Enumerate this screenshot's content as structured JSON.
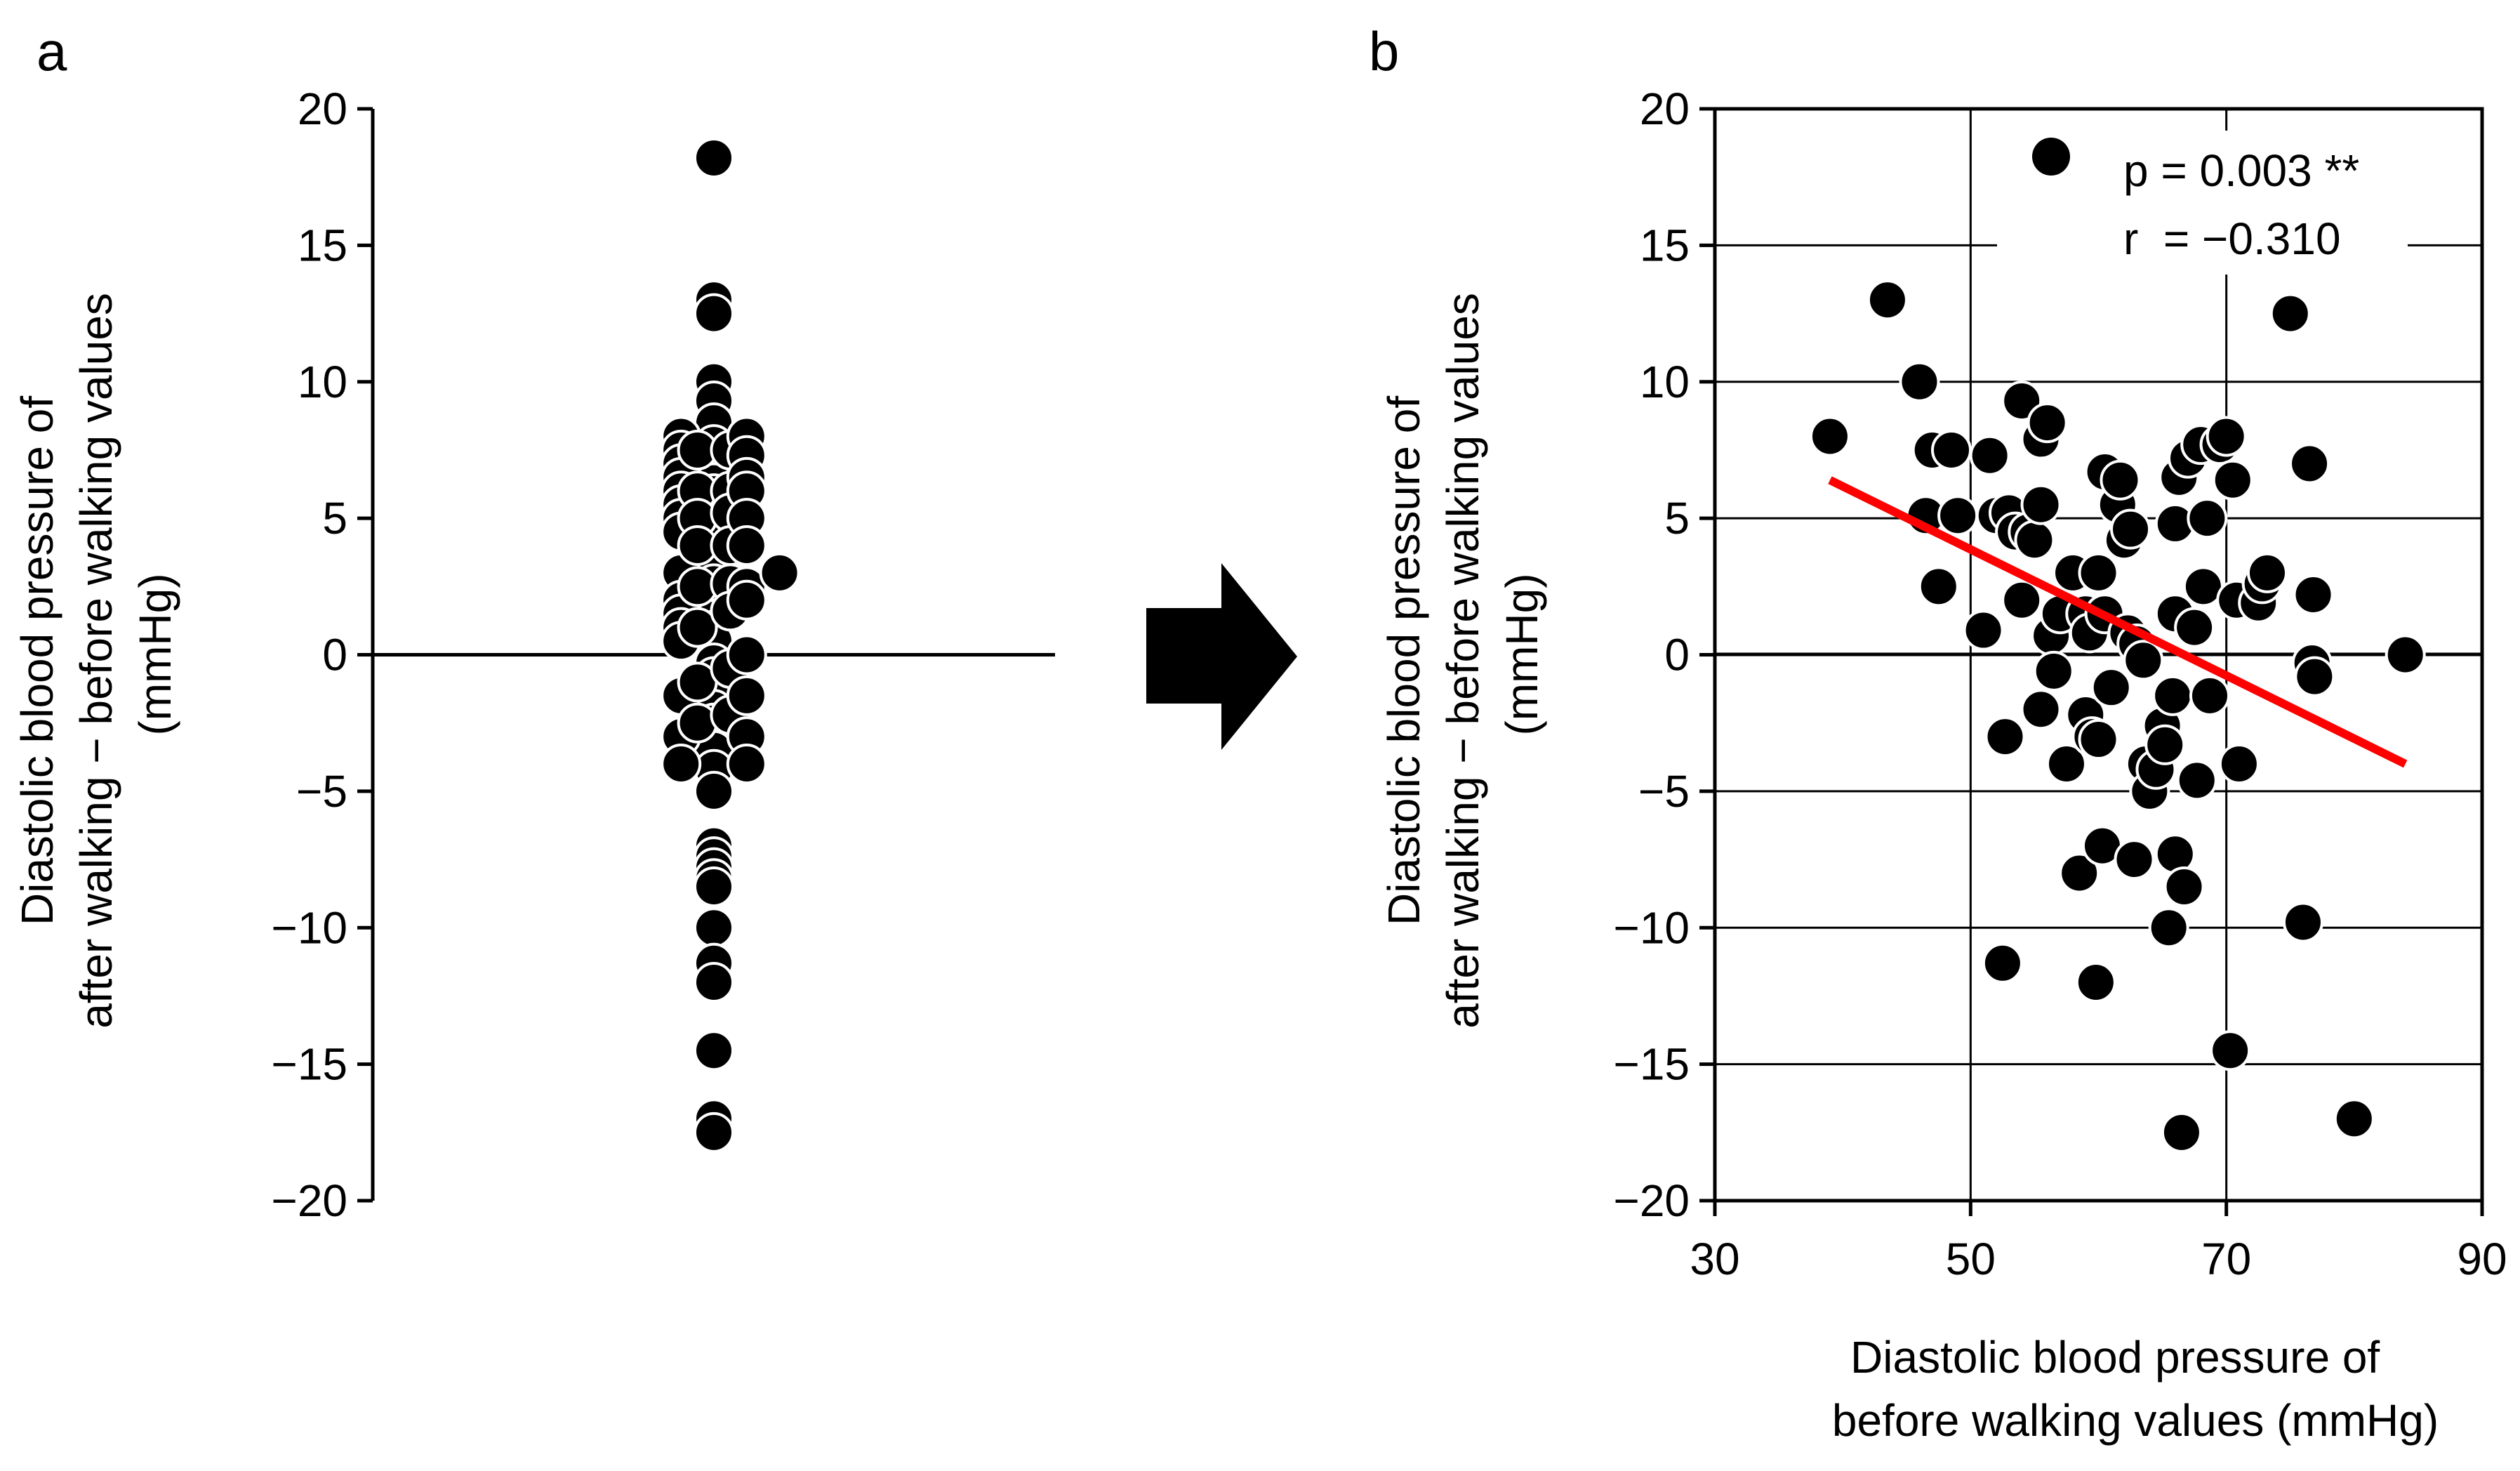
{
  "arrow_color": "#000000",
  "chart_data": [
    {
      "panel_label": "a",
      "type": "scatter",
      "title": "",
      "xlabel": "",
      "ylabel_lines": [
        "Diastolic blood pressure of",
        "after walking − before walking values",
        "(mmHg)"
      ],
      "ylim": [
        -20,
        20
      ],
      "yticks": [
        20,
        15,
        10,
        5,
        0,
        -5,
        -10,
        -15,
        -20
      ],
      "ytick_labels": [
        "20",
        "15",
        "10",
        "5",
        "0",
        "−5",
        "−10",
        "−15",
        "−20"
      ],
      "marker_color": "#000000",
      "marker_edge": "#ffffff",
      "zero_line": true,
      "points": [
        {
          "x": 0,
          "y": 18.2
        },
        {
          "x": 0,
          "y": 13
        },
        {
          "x": 0,
          "y": 12.5
        },
        {
          "x": 0,
          "y": 10
        },
        {
          "x": 0,
          "y": 9.3
        },
        {
          "x": 0,
          "y": 8.5
        },
        {
          "x": 0,
          "y": 7.7
        },
        {
          "x": 0,
          "y": 7
        },
        {
          "x": 0,
          "y": 6.6
        },
        {
          "x": 0,
          "y": 6.3
        },
        {
          "x": 0,
          "y": 5.9
        },
        {
          "x": 0,
          "y": 5.5
        },
        {
          "x": 0,
          "y": 5
        },
        {
          "x": 0,
          "y": 4.5
        },
        {
          "x": 0,
          "y": 4.1
        },
        {
          "x": 0,
          "y": 3.5
        },
        {
          "x": 0,
          "y": 3
        },
        {
          "x": 0,
          "y": 2.6
        },
        {
          "x": 0,
          "y": 2.1
        },
        {
          "x": 0,
          "y": 1.7
        },
        {
          "x": 0,
          "y": 1.3
        },
        {
          "x": 0,
          "y": 0.9
        },
        {
          "x": 0,
          "y": 0.5
        },
        {
          "x": 0,
          "y": -0.3
        },
        {
          "x": 0,
          "y": -0.8
        },
        {
          "x": 0,
          "y": -1.5
        },
        {
          "x": 0,
          "y": -2
        },
        {
          "x": 0,
          "y": -2.5
        },
        {
          "x": 0,
          "y": -3
        },
        {
          "x": 0,
          "y": -3.5
        },
        {
          "x": 0,
          "y": -4.2
        },
        {
          "x": 0,
          "y": -5
        },
        {
          "x": 0,
          "y": -7
        },
        {
          "x": 0,
          "y": -7.4
        },
        {
          "x": 0,
          "y": -7.8
        },
        {
          "x": 0,
          "y": -8.2
        },
        {
          "x": 0,
          "y": -8.5
        },
        {
          "x": 0,
          "y": -10
        },
        {
          "x": 0,
          "y": -11.3
        },
        {
          "x": 0,
          "y": -12
        },
        {
          "x": 0,
          "y": -14.5
        },
        {
          "x": 0,
          "y": -17
        },
        {
          "x": 0,
          "y": -17.5
        },
        {
          "x": -0.9,
          "y": 8
        },
        {
          "x": -0.9,
          "y": 7.5
        },
        {
          "x": -0.9,
          "y": 7
        },
        {
          "x": -0.9,
          "y": 6.5
        },
        {
          "x": -0.9,
          "y": 6
        },
        {
          "x": -0.9,
          "y": 5.5
        },
        {
          "x": -0.9,
          "y": 5
        },
        {
          "x": -0.9,
          "y": 4.5
        },
        {
          "x": -0.9,
          "y": 3
        },
        {
          "x": -0.9,
          "y": 2
        },
        {
          "x": -0.9,
          "y": 1.5
        },
        {
          "x": -0.9,
          "y": 1
        },
        {
          "x": -0.9,
          "y": 0.5
        },
        {
          "x": -0.9,
          "y": -1.5
        },
        {
          "x": -0.9,
          "y": -3
        },
        {
          "x": -0.9,
          "y": -4
        },
        {
          "x": -0.45,
          "y": 7.5
        },
        {
          "x": -0.45,
          "y": 6
        },
        {
          "x": -0.45,
          "y": 5
        },
        {
          "x": -0.45,
          "y": 4
        },
        {
          "x": -0.45,
          "y": 2.5
        },
        {
          "x": -0.45,
          "y": 1
        },
        {
          "x": -0.45,
          "y": -1
        },
        {
          "x": -0.45,
          "y": -2.5
        },
        {
          "x": 0.45,
          "y": 7.5
        },
        {
          "x": 0.45,
          "y": 6
        },
        {
          "x": 0.45,
          "y": 5.2
        },
        {
          "x": 0.45,
          "y": 4
        },
        {
          "x": 0.45,
          "y": 2.6
        },
        {
          "x": 0.45,
          "y": 1.6
        },
        {
          "x": 0.45,
          "y": -0.5
        },
        {
          "x": 0.45,
          "y": -2.2
        },
        {
          "x": 0.9,
          "y": 8
        },
        {
          "x": 0.9,
          "y": 7.3
        },
        {
          "x": 0.9,
          "y": 6.5
        },
        {
          "x": 0.9,
          "y": 6
        },
        {
          "x": 0.9,
          "y": 5
        },
        {
          "x": 0.9,
          "y": 4
        },
        {
          "x": 0.9,
          "y": 2.5
        },
        {
          "x": 0.9,
          "y": 2
        },
        {
          "x": 0.9,
          "y": 0
        },
        {
          "x": 0.9,
          "y": -1.5
        },
        {
          "x": 0.9,
          "y": -3
        },
        {
          "x": 0.9,
          "y": -4
        },
        {
          "x": 1.8,
          "y": 3
        }
      ]
    },
    {
      "panel_label": "b",
      "type": "scatter",
      "title": "",
      "xlabel_lines": [
        "Diastolic blood pressure of",
        "before walking values (mmHg)"
      ],
      "ylabel_lines": [
        "Diastolic blood pressure of",
        "after walking − before walking values",
        "(mmHg)"
      ],
      "xlim": [
        30,
        90
      ],
      "ylim": [
        -20,
        20
      ],
      "xticks": [
        30,
        50,
        70,
        90
      ],
      "xtick_labels": [
        "30",
        "50",
        "70",
        "90"
      ],
      "yticks": [
        20,
        15,
        10,
        5,
        0,
        -5,
        -10,
        -15,
        -20
      ],
      "ytick_labels": [
        "20",
        "15",
        "10",
        "5",
        "0",
        "−5",
        "−10",
        "−15",
        "−20"
      ],
      "grid": true,
      "legend": {
        "location": "top-right",
        "label": "p = 0.003 **",
        "stat": "r  = −0.310"
      },
      "marker_color": "#000000",
      "trend_line": {
        "color": "#ff0000",
        "x": [
          39,
          84
        ],
        "y": [
          6.4,
          -4.0
        ]
      },
      "points": [
        {
          "x": 39,
          "y": 8
        },
        {
          "x": 43.5,
          "y": 13
        },
        {
          "x": 46,
          "y": 10
        },
        {
          "x": 46.5,
          "y": 5.1
        },
        {
          "x": 47,
          "y": 7.5
        },
        {
          "x": 47.5,
          "y": 2.5
        },
        {
          "x": 48.5,
          "y": 7.5
        },
        {
          "x": 49,
          "y": 5.1
        },
        {
          "x": 51,
          "y": 0.9
        },
        {
          "x": 51.5,
          "y": 7.3
        },
        {
          "x": 52,
          "y": 5.1
        },
        {
          "x": 52.5,
          "y": -11.3
        },
        {
          "x": 52.7,
          "y": -3
        },
        {
          "x": 53,
          "y": 5.2
        },
        {
          "x": 53.5,
          "y": 4.5
        },
        {
          "x": 54,
          "y": 9.3
        },
        {
          "x": 54,
          "y": 2
        },
        {
          "x": 54.5,
          "y": 4.5
        },
        {
          "x": 55,
          "y": 4.2
        },
        {
          "x": 55.5,
          "y": 7.9
        },
        {
          "x": 55.5,
          "y": 5.5
        },
        {
          "x": 55.5,
          "y": -2
        },
        {
          "x": 56,
          "y": 8.5
        },
        {
          "x": 56.3,
          "y": 0.7
        },
        {
          "x": 56.5,
          "y": -0.6
        },
        {
          "x": 57,
          "y": 1.5
        },
        {
          "x": 57.5,
          "y": -4
        },
        {
          "x": 58,
          "y": 3
        },
        {
          "x": 58.5,
          "y": -8
        },
        {
          "x": 59,
          "y": -2.2
        },
        {
          "x": 59,
          "y": 1.5
        },
        {
          "x": 59.3,
          "y": 0.8
        },
        {
          "x": 59.5,
          "y": -3
        },
        {
          "x": 59.8,
          "y": -12
        },
        {
          "x": 60,
          "y": 3
        },
        {
          "x": 60,
          "y": -3.1
        },
        {
          "x": 60.3,
          "y": -7
        },
        {
          "x": 60.5,
          "y": 1.5
        },
        {
          "x": 60.5,
          "y": 6.7
        },
        {
          "x": 61,
          "y": -1.2
        },
        {
          "x": 61.5,
          "y": 5.5
        },
        {
          "x": 61.7,
          "y": 6.4
        },
        {
          "x": 62,
          "y": 4.2
        },
        {
          "x": 62.3,
          "y": 0.8
        },
        {
          "x": 62.5,
          "y": 4.6
        },
        {
          "x": 62.8,
          "y": -7.5
        },
        {
          "x": 63,
          "y": 0.4
        },
        {
          "x": 63.5,
          "y": -0.2
        },
        {
          "x": 63.7,
          "y": -4
        },
        {
          "x": 64,
          "y": -5
        },
        {
          "x": 64.5,
          "y": -4.2
        },
        {
          "x": 65,
          "y": -2.6
        },
        {
          "x": 65.2,
          "y": -3.3
        },
        {
          "x": 65.5,
          "y": -10
        },
        {
          "x": 65.8,
          "y": -1.5
        },
        {
          "x": 66,
          "y": 4.8
        },
        {
          "x": 66,
          "y": 1.5
        },
        {
          "x": 66,
          "y": -7.3
        },
        {
          "x": 66.3,
          "y": 6.5
        },
        {
          "x": 66.5,
          "y": -17.5
        },
        {
          "x": 66.7,
          "y": -8.5
        },
        {
          "x": 67,
          "y": 7.2
        },
        {
          "x": 67.5,
          "y": 1
        },
        {
          "x": 67.7,
          "y": -4.6
        },
        {
          "x": 68,
          "y": 7.7
        },
        {
          "x": 68.2,
          "y": 2.5
        },
        {
          "x": 68.5,
          "y": 5
        },
        {
          "x": 68.7,
          "y": -1.5
        },
        {
          "x": 69.5,
          "y": 7.7
        },
        {
          "x": 70,
          "y": 8
        },
        {
          "x": 70.3,
          "y": -14.5
        },
        {
          "x": 70.5,
          "y": 6.4
        },
        {
          "x": 70.8,
          "y": 2
        },
        {
          "x": 71,
          "y": -4
        },
        {
          "x": 72.5,
          "y": 1.9
        },
        {
          "x": 72.8,
          "y": 2.6
        },
        {
          "x": 73.2,
          "y": 3
        },
        {
          "x": 75,
          "y": 12.5
        },
        {
          "x": 76,
          "y": -9.8
        },
        {
          "x": 76.5,
          "y": 7
        },
        {
          "x": 76.7,
          "y": -0.3
        },
        {
          "x": 76.8,
          "y": 2.2
        },
        {
          "x": 76.9,
          "y": -0.8
        },
        {
          "x": 80,
          "y": -17
        },
        {
          "x": 84,
          "y": 0
        }
      ]
    }
  ]
}
